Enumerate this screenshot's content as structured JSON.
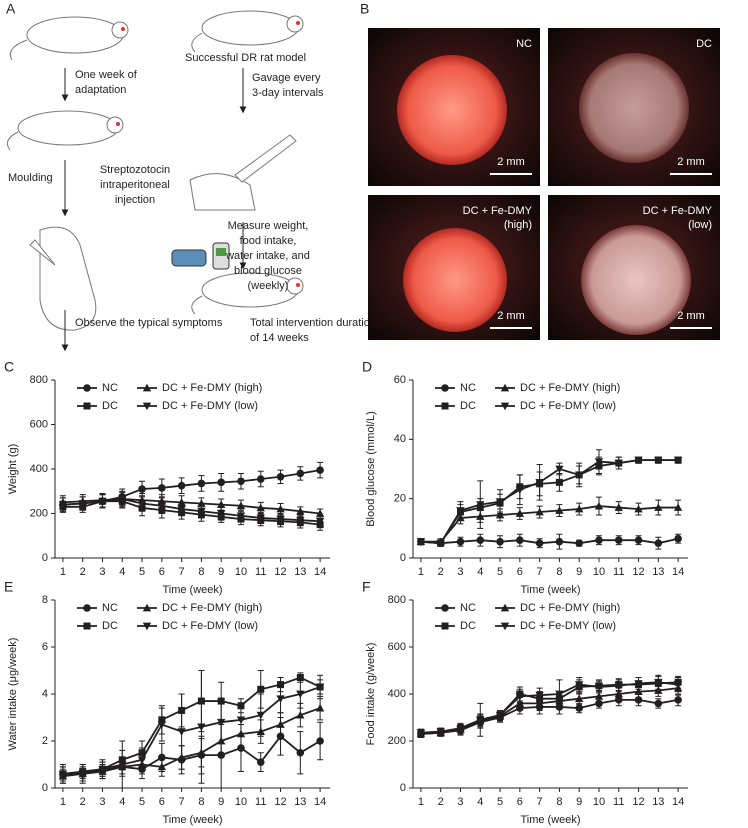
{
  "schematic": {
    "panel": "A",
    "steps": [
      {
        "lines": [
          "One week of",
          "adaptation"
        ],
        "x": 75
      },
      {
        "lines": [
          "Moulding"
        ]
      },
      {
        "lines": [
          "Streptozotocin",
          "intraperitoneal",
          "injection"
        ]
      },
      {
        "lines": [
          "Observe the typical symptoms"
        ]
      },
      {
        "lines": [
          "Successful DR rat model"
        ]
      },
      {
        "lines": [
          "Gavage every",
          "3-day intervals"
        ]
      },
      {
        "lines": [
          "Measure weight,",
          "food intake,",
          "water intake, and",
          "blood glucose",
          "(weekly)"
        ]
      },
      {
        "lines": [
          "Total intervention duration",
          "of 14 weeks"
        ]
      }
    ]
  },
  "photos": {
    "panel": "B",
    "tiles": [
      {
        "label": [
          "NC"
        ],
        "scale": "2 mm"
      },
      {
        "label": [
          "DC"
        ],
        "scale": "2 mm"
      },
      {
        "label": [
          "DC + Fe-DMY",
          "(high)"
        ],
        "scale": "2 mm"
      },
      {
        "label": [
          "DC + Fe-DMY",
          "(low)"
        ],
        "scale": "2 mm"
      }
    ]
  },
  "chart_data": [
    {
      "type": "line",
      "panel": "C",
      "xlabel": "Time (week)",
      "ylabel": "Weight (g)",
      "x": [
        1,
        2,
        3,
        4,
        5,
        6,
        7,
        8,
        9,
        10,
        11,
        12,
        13,
        14
      ],
      "xlim": [
        0.6,
        14.5
      ],
      "xticks": [
        1,
        2,
        3,
        4,
        5,
        6,
        7,
        8,
        9,
        10,
        11,
        12,
        13,
        14
      ],
      "ylim": [
        0,
        800
      ],
      "yticks": [
        0,
        200,
        400,
        600,
        800
      ],
      "series": [
        {
          "name": "NC",
          "color": "#231f20",
          "marker": "circle",
          "values": [
            240,
            245,
            255,
            275,
            310,
            315,
            325,
            335,
            340,
            345,
            355,
            365,
            380,
            395
          ],
          "errors": [
            30,
            30,
            30,
            35,
            35,
            40,
            35,
            35,
            40,
            35,
            35,
            30,
            30,
            35
          ]
        },
        {
          "name": "DC",
          "color": "#231f20",
          "marker": "square",
          "values": [
            230,
            230,
            255,
            255,
            225,
            215,
            205,
            195,
            185,
            175,
            170,
            165,
            160,
            150
          ],
          "errors": [
            25,
            25,
            30,
            30,
            35,
            35,
            30,
            30,
            25,
            25,
            25,
            25,
            25,
            25
          ]
        },
        {
          "name": "DC + Fe-DMY (high)",
          "color": "#231f20",
          "marker": "triangle-up",
          "values": [
            250,
            255,
            260,
            265,
            260,
            255,
            250,
            245,
            240,
            235,
            225,
            220,
            210,
            200
          ],
          "errors": [
            30,
            30,
            30,
            30,
            30,
            30,
            30,
            25,
            25,
            25,
            25,
            25,
            20,
            20
          ]
        },
        {
          "name": "DC + Fe-DMY (low)",
          "color": "#231f20",
          "marker": "triangle-down",
          "values": [
            240,
            245,
            255,
            265,
            245,
            235,
            220,
            210,
            200,
            190,
            180,
            175,
            170,
            165
          ],
          "errors": [
            30,
            30,
            30,
            35,
            35,
            35,
            30,
            30,
            30,
            25,
            25,
            25,
            25,
            25
          ]
        }
      ]
    },
    {
      "type": "line",
      "panel": "D",
      "xlabel": "Time (week)",
      "ylabel": "Blood glucose (mmol/L)",
      "x": [
        1,
        2,
        3,
        4,
        5,
        6,
        7,
        8,
        9,
        10,
        11,
        12,
        13,
        14
      ],
      "xlim": [
        0.6,
        14.5
      ],
      "xticks": [
        1,
        2,
        3,
        4,
        5,
        6,
        7,
        8,
        9,
        10,
        11,
        12,
        13,
        14
      ],
      "ylim": [
        0,
        60
      ],
      "yticks": [
        0,
        20,
        40,
        60
      ],
      "series": [
        {
          "name": "NC",
          "color": "#231f20",
          "marker": "circle",
          "values": [
            5.5,
            5,
            5.5,
            6,
            5.5,
            6,
            5,
            5.5,
            5,
            6,
            6,
            6,
            5,
            6.5
          ],
          "errors": [
            1,
            1,
            1.5,
            2,
            2,
            2,
            1.5,
            2.5,
            1,
            1.5,
            1.5,
            1.5,
            2,
            1.5
          ]
        },
        {
          "name": "DC",
          "color": "#231f20",
          "marker": "square",
          "values": [
            5.5,
            5,
            15.5,
            17,
            18.5,
            24,
            25,
            25.5,
            28,
            31,
            32,
            33,
            33,
            33
          ],
          "errors": [
            1,
            1,
            2.5,
            3,
            3,
            4,
            4,
            3,
            3,
            3,
            2,
            1,
            1,
            1
          ]
        },
        {
          "name": "DC + Fe-DMY (high)",
          "color": "#231f20",
          "marker": "triangle-up",
          "values": [
            5.5,
            5.5,
            13.5,
            14,
            14.5,
            15,
            15.5,
            16,
            16.5,
            17.5,
            17,
            16.5,
            17,
            17
          ],
          "errors": [
            1,
            1,
            2,
            2,
            2,
            2,
            2,
            2,
            2,
            3,
            2,
            2,
            2.5,
            2.5
          ]
        },
        {
          "name": "DC + Fe-DMY (low)",
          "color": "#231f20",
          "marker": "triangle-down",
          "values": [
            5.5,
            5,
            16,
            18,
            19,
            23,
            25.5,
            30,
            28,
            32.5,
            32,
            33,
            33,
            33
          ],
          "errors": [
            1,
            1,
            3,
            8,
            4,
            5,
            6,
            2,
            4,
            4,
            2,
            1,
            1,
            1
          ]
        }
      ]
    },
    {
      "type": "line",
      "panel": "E",
      "xlabel": "Time (week)",
      "ylabel": "Water intake (μg/week)",
      "x": [
        1,
        2,
        3,
        4,
        5,
        6,
        7,
        8,
        9,
        10,
        11,
        12,
        13,
        14
      ],
      "xlim": [
        0.6,
        14.5
      ],
      "xticks": [
        1,
        2,
        3,
        4,
        5,
        6,
        7,
        8,
        9,
        10,
        11,
        12,
        13,
        14
      ],
      "ylim": [
        0,
        8
      ],
      "yticks": [
        0,
        2,
        4,
        6,
        8
      ],
      "series": [
        {
          "name": "NC",
          "color": "#231f20",
          "marker": "circle",
          "values": [
            0.6,
            0.6,
            0.8,
            0.9,
            0.8,
            1.3,
            1.2,
            1.4,
            1.4,
            1.7,
            1.1,
            2.2,
            1.5,
            2.0
          ],
          "errors": [
            0.3,
            0.3,
            0.3,
            0.4,
            0.4,
            0.6,
            0.6,
            0.8,
            1.4,
            1.0,
            0.4,
            0.8,
            0.9,
            0.8
          ]
        },
        {
          "name": "DC",
          "color": "#231f20",
          "marker": "square",
          "values": [
            0.6,
            0.7,
            0.8,
            1.2,
            1.5,
            2.9,
            3.3,
            3.7,
            3.7,
            3.5,
            4.2,
            4.4,
            4.7,
            4.3
          ],
          "errors": [
            0.3,
            0.3,
            0.3,
            0.4,
            0.5,
            0.6,
            0.7,
            1.3,
            0.8,
            0.3,
            0.8,
            0.3,
            0.2,
            0.3
          ]
        },
        {
          "name": "DC + Fe-DMY (high)",
          "color": "#231f20",
          "marker": "triangle-up",
          "values": [
            0.5,
            0.6,
            0.7,
            0.9,
            1.0,
            0.9,
            1.3,
            1.5,
            2.0,
            2.3,
            2.4,
            2.7,
            3.1,
            3.4
          ],
          "errors": [
            0.3,
            0.3,
            0.3,
            0.3,
            0.4,
            0.4,
            0.5,
            0.6,
            0.7,
            0.6,
            0.5,
            0.5,
            0.5,
            0.5
          ]
        },
        {
          "name": "DC + Fe-DMY (low)",
          "color": "#231f20",
          "marker": "triangle-down",
          "values": [
            0.6,
            0.6,
            0.8,
            1.0,
            1.2,
            2.7,
            2.4,
            2.6,
            2.8,
            2.9,
            3.1,
            3.8,
            4.0,
            4.3
          ],
          "errors": [
            0.4,
            0.4,
            0.4,
            1.0,
            0.5,
            0.7,
            1.6,
            2.4,
            0.9,
            0.6,
            0.9,
            0.6,
            0.6,
            0.5
          ]
        }
      ]
    },
    {
      "type": "line",
      "panel": "F",
      "xlabel": "Time (week)",
      "ylabel": "Food intake (g/week)",
      "x": [
        1,
        2,
        3,
        4,
        5,
        6,
        7,
        8,
        9,
        10,
        11,
        12,
        13,
        14
      ],
      "xlim": [
        0.6,
        14.5
      ],
      "xticks": [
        1,
        2,
        3,
        4,
        5,
        6,
        7,
        8,
        9,
        10,
        11,
        12,
        13,
        14
      ],
      "ylim": [
        0,
        800
      ],
      "yticks": [
        0,
        200,
        400,
        600,
        800
      ],
      "series": [
        {
          "name": "NC",
          "color": "#231f20",
          "marker": "circle",
          "values": [
            230,
            235,
            245,
            280,
            300,
            340,
            345,
            345,
            340,
            360,
            375,
            375,
            360,
            375
          ],
          "errors": [
            15,
            15,
            20,
            25,
            20,
            25,
            30,
            30,
            20,
            20,
            25,
            25,
            20,
            25
          ]
        },
        {
          "name": "DC",
          "color": "#231f20",
          "marker": "square",
          "values": [
            235,
            240,
            255,
            290,
            310,
            400,
            380,
            380,
            430,
            435,
            440,
            440,
            445,
            450
          ],
          "errors": [
            15,
            15,
            20,
            25,
            20,
            30,
            30,
            25,
            30,
            25,
            25,
            30,
            30,
            25
          ]
        },
        {
          "name": "DC + Fe-DMY (high)",
          "color": "#231f20",
          "marker": "triangle-up",
          "values": [
            230,
            235,
            250,
            285,
            305,
            360,
            360,
            370,
            380,
            390,
            400,
            410,
            415,
            425
          ],
          "errors": [
            15,
            15,
            20,
            25,
            20,
            25,
            30,
            25,
            25,
            25,
            25,
            25,
            25,
            30
          ]
        },
        {
          "name": "DC + Fe-DMY (low)",
          "color": "#231f20",
          "marker": "triangle-down",
          "values": [
            235,
            240,
            250,
            290,
            310,
            390,
            395,
            400,
            440,
            430,
            435,
            445,
            450,
            440
          ],
          "errors": [
            15,
            15,
            20,
            70,
            20,
            30,
            30,
            60,
            30,
            25,
            25,
            25,
            30,
            30
          ]
        }
      ]
    }
  ]
}
